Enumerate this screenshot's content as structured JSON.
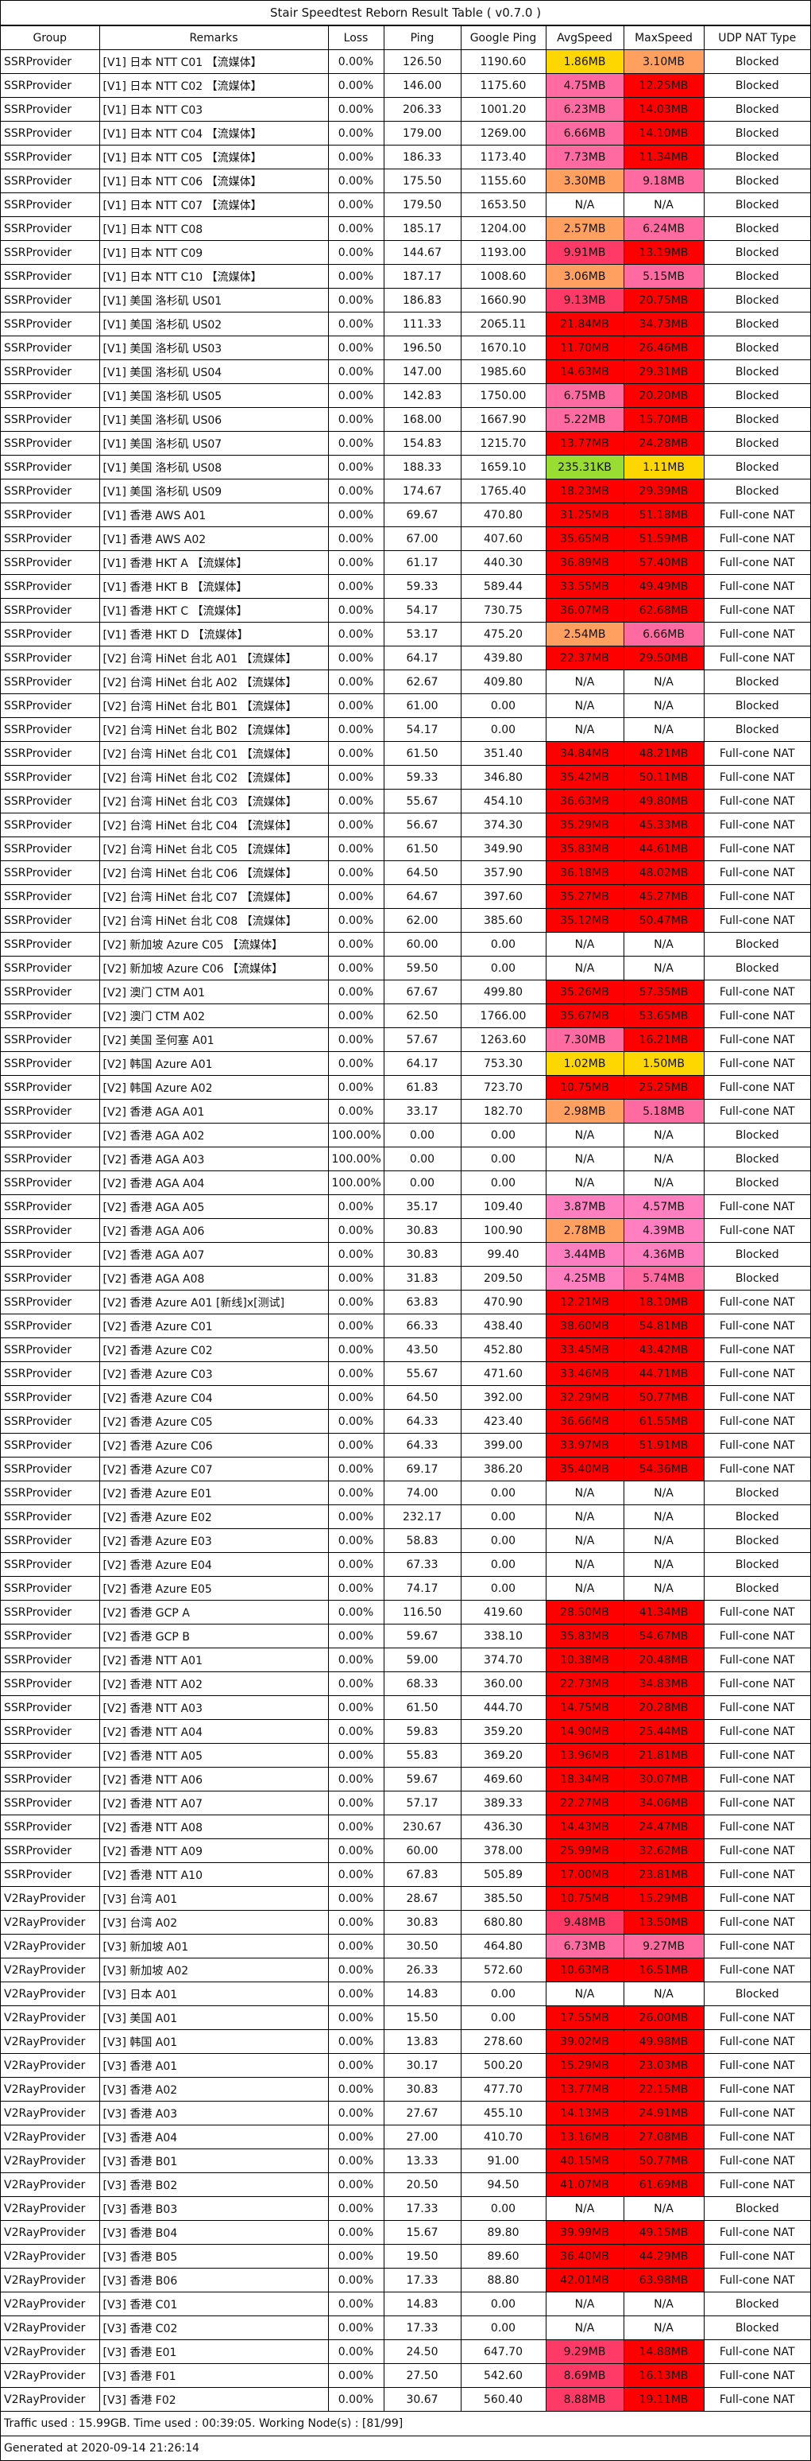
{
  "title": "Stair Speedtest Reborn Result Table ( v0.7.0 )",
  "headers": [
    "Group",
    "Remarks",
    "Loss",
    "Ping",
    "Google Ping",
    "AvgSpeed",
    "MaxSpeed",
    "UDP NAT Type"
  ],
  "colors": {
    "red": "#ff0000",
    "pink_bright": "#ff3a66",
    "pink": "#ff6aa0",
    "pink_light": "#ff7fc0",
    "orange": "#ffa060",
    "yellow": "#ffd700",
    "green": "#99dd33"
  },
  "rows": [
    [
      "SSRProvider",
      "[V1] 日本 NTT C01 【流媒体】",
      "0.00%",
      "126.50",
      "1190.60",
      "1.86MB",
      "3.10MB",
      "Blocked",
      "yellow",
      "orange"
    ],
    [
      "SSRProvider",
      "[V1] 日本 NTT C02 【流媒体】",
      "0.00%",
      "146.00",
      "1175.60",
      "4.75MB",
      "12.25MB",
      "Blocked",
      "pink",
      "red"
    ],
    [
      "SSRProvider",
      "[V1] 日本 NTT C03",
      "0.00%",
      "206.33",
      "1001.20",
      "6.23MB",
      "14.03MB",
      "Blocked",
      "pink",
      "red"
    ],
    [
      "SSRProvider",
      "[V1] 日本 NTT C04 【流媒体】",
      "0.00%",
      "179.00",
      "1269.00",
      "6.66MB",
      "14.10MB",
      "Blocked",
      "pink",
      "red"
    ],
    [
      "SSRProvider",
      "[V1] 日本 NTT C05 【流媒体】",
      "0.00%",
      "186.33",
      "1173.40",
      "7.73MB",
      "11.34MB",
      "Blocked",
      "pink",
      "red"
    ],
    [
      "SSRProvider",
      "[V1] 日本 NTT C06 【流媒体】",
      "0.00%",
      "175.50",
      "1155.60",
      "3.30MB",
      "9.18MB",
      "Blocked",
      "orange",
      "pink"
    ],
    [
      "SSRProvider",
      "[V1] 日本 NTT C07 【流媒体】",
      "0.00%",
      "179.50",
      "1653.50",
      "N/A",
      "N/A",
      "Blocked",
      "",
      ""
    ],
    [
      "SSRProvider",
      "[V1] 日本 NTT C08",
      "0.00%",
      "185.17",
      "1204.00",
      "2.57MB",
      "6.24MB",
      "Blocked",
      "orange",
      "pink"
    ],
    [
      "SSRProvider",
      "[V1] 日本 NTT C09",
      "0.00%",
      "144.67",
      "1193.00",
      "9.91MB",
      "13.19MB",
      "Blocked",
      "pink_bright",
      "red"
    ],
    [
      "SSRProvider",
      "[V1] 日本 NTT C10 【流媒体】",
      "0.00%",
      "187.17",
      "1008.60",
      "3.06MB",
      "5.15MB",
      "Blocked",
      "orange",
      "pink"
    ],
    [
      "SSRProvider",
      "[V1] 美国 洛杉矶 US01",
      "0.00%",
      "186.83",
      "1660.90",
      "9.13MB",
      "20.75MB",
      "Blocked",
      "pink_bright",
      "red"
    ],
    [
      "SSRProvider",
      "[V1] 美国 洛杉矶 US02",
      "0.00%",
      "111.33",
      "2065.11",
      "21.84MB",
      "34.73MB",
      "Blocked",
      "red",
      "red"
    ],
    [
      "SSRProvider",
      "[V1] 美国 洛杉矶 US03",
      "0.00%",
      "196.50",
      "1670.10",
      "11.70MB",
      "26.46MB",
      "Blocked",
      "red",
      "red"
    ],
    [
      "SSRProvider",
      "[V1] 美国 洛杉矶 US04",
      "0.00%",
      "147.00",
      "1985.60",
      "14.63MB",
      "29.31MB",
      "Blocked",
      "red",
      "red"
    ],
    [
      "SSRProvider",
      "[V1] 美国 洛杉矶 US05",
      "0.00%",
      "142.83",
      "1750.00",
      "6.75MB",
      "20.20MB",
      "Blocked",
      "pink",
      "red"
    ],
    [
      "SSRProvider",
      "[V1] 美国 洛杉矶 US06",
      "0.00%",
      "168.00",
      "1667.90",
      "5.22MB",
      "15.70MB",
      "Blocked",
      "pink",
      "red"
    ],
    [
      "SSRProvider",
      "[V1] 美国 洛杉矶 US07",
      "0.00%",
      "154.83",
      "1215.70",
      "13.77MB",
      "24.28MB",
      "Blocked",
      "red",
      "red"
    ],
    [
      "SSRProvider",
      "[V1] 美国 洛杉矶 US08",
      "0.00%",
      "188.33",
      "1659.10",
      "235.31KB",
      "1.11MB",
      "Blocked",
      "green",
      "yellow"
    ],
    [
      "SSRProvider",
      "[V1] 美国 洛杉矶 US09",
      "0.00%",
      "174.67",
      "1765.40",
      "18.23MB",
      "29.39MB",
      "Blocked",
      "red",
      "red"
    ],
    [
      "SSRProvider",
      "[V1] 香港 AWS A01",
      "0.00%",
      "69.67",
      "470.80",
      "31.25MB",
      "51.18MB",
      "Full-cone NAT",
      "red",
      "red"
    ],
    [
      "SSRProvider",
      "[V1] 香港 AWS A02",
      "0.00%",
      "67.00",
      "407.60",
      "35.65MB",
      "51.59MB",
      "Full-cone NAT",
      "red",
      "red"
    ],
    [
      "SSRProvider",
      "[V1] 香港 HKT A 【流媒体】",
      "0.00%",
      "61.17",
      "440.30",
      "36.89MB",
      "57.40MB",
      "Full-cone NAT",
      "red",
      "red"
    ],
    [
      "SSRProvider",
      "[V1] 香港 HKT B 【流媒体】",
      "0.00%",
      "59.33",
      "589.44",
      "33.55MB",
      "49.49MB",
      "Full-cone NAT",
      "red",
      "red"
    ],
    [
      "SSRProvider",
      "[V1] 香港 HKT C 【流媒体】",
      "0.00%",
      "54.17",
      "730.75",
      "36.07MB",
      "62.68MB",
      "Full-cone NAT",
      "red",
      "red"
    ],
    [
      "SSRProvider",
      "[V1] 香港 HKT D 【流媒体】",
      "0.00%",
      "53.17",
      "475.20",
      "2.54MB",
      "6.66MB",
      "Full-cone NAT",
      "orange",
      "pink"
    ],
    [
      "SSRProvider",
      "[V2] 台湾 HiNet 台北 A01 【流媒体】",
      "0.00%",
      "64.17",
      "439.80",
      "22.37MB",
      "29.50MB",
      "Full-cone NAT",
      "red",
      "red"
    ],
    [
      "SSRProvider",
      "[V2] 台湾 HiNet 台北 A02 【流媒体】",
      "0.00%",
      "62.67",
      "409.80",
      "N/A",
      "N/A",
      "Blocked",
      "",
      ""
    ],
    [
      "SSRProvider",
      "[V2] 台湾 HiNet 台北 B01 【流媒体】",
      "0.00%",
      "61.00",
      "0.00",
      "N/A",
      "N/A",
      "Blocked",
      "",
      ""
    ],
    [
      "SSRProvider",
      "[V2] 台湾 HiNet 台北 B02 【流媒体】",
      "0.00%",
      "54.17",
      "0.00",
      "N/A",
      "N/A",
      "Blocked",
      "",
      ""
    ],
    [
      "SSRProvider",
      "[V2] 台湾 HiNet 台北 C01 【流媒体】",
      "0.00%",
      "61.50",
      "351.40",
      "34.84MB",
      "48.21MB",
      "Full-cone NAT",
      "red",
      "red"
    ],
    [
      "SSRProvider",
      "[V2] 台湾 HiNet 台北 C02 【流媒体】",
      "0.00%",
      "59.33",
      "346.80",
      "35.42MB",
      "50.11MB",
      "Full-cone NAT",
      "red",
      "red"
    ],
    [
      "SSRProvider",
      "[V2] 台湾 HiNet 台北 C03 【流媒体】",
      "0.00%",
      "55.67",
      "454.10",
      "36.63MB",
      "49.80MB",
      "Full-cone NAT",
      "red",
      "red"
    ],
    [
      "SSRProvider",
      "[V2] 台湾 HiNet 台北 C04 【流媒体】",
      "0.00%",
      "56.67",
      "374.30",
      "35.29MB",
      "45.33MB",
      "Full-cone NAT",
      "red",
      "red"
    ],
    [
      "SSRProvider",
      "[V2] 台湾 HiNet 台北 C05 【流媒体】",
      "0.00%",
      "61.50",
      "349.90",
      "35.83MB",
      "44.61MB",
      "Full-cone NAT",
      "red",
      "red"
    ],
    [
      "SSRProvider",
      "[V2] 台湾 HiNet 台北 C06 【流媒体】",
      "0.00%",
      "64.50",
      "357.90",
      "36.18MB",
      "48.02MB",
      "Full-cone NAT",
      "red",
      "red"
    ],
    [
      "SSRProvider",
      "[V2] 台湾 HiNet 台北 C07 【流媒体】",
      "0.00%",
      "64.67",
      "397.60",
      "35.27MB",
      "45.27MB",
      "Full-cone NAT",
      "red",
      "red"
    ],
    [
      "SSRProvider",
      "[V2] 台湾 HiNet 台北 C08 【流媒体】",
      "0.00%",
      "62.00",
      "385.60",
      "35.12MB",
      "50.47MB",
      "Full-cone NAT",
      "red",
      "red"
    ],
    [
      "SSRProvider",
      "[V2] 新加坡 Azure C05 【流媒体】",
      "0.00%",
      "60.00",
      "0.00",
      "N/A",
      "N/A",
      "Blocked",
      "",
      ""
    ],
    [
      "SSRProvider",
      "[V2] 新加坡 Azure C06 【流媒体】",
      "0.00%",
      "59.50",
      "0.00",
      "N/A",
      "N/A",
      "Blocked",
      "",
      ""
    ],
    [
      "SSRProvider",
      "[V2] 澳门 CTM A01",
      "0.00%",
      "67.67",
      "499.80",
      "35.26MB",
      "57.35MB",
      "Full-cone NAT",
      "red",
      "red"
    ],
    [
      "SSRProvider",
      "[V2] 澳门 CTM A02",
      "0.00%",
      "62.50",
      "1766.00",
      "35.67MB",
      "53.65MB",
      "Full-cone NAT",
      "red",
      "red"
    ],
    [
      "SSRProvider",
      "[V2] 美国 圣何塞 A01",
      "0.00%",
      "57.67",
      "1263.60",
      "7.30MB",
      "16.21MB",
      "Full-cone NAT",
      "pink",
      "red"
    ],
    [
      "SSRProvider",
      "[V2] 韩国 Azure A01",
      "0.00%",
      "64.17",
      "753.30",
      "1.02MB",
      "1.50MB",
      "Full-cone NAT",
      "yellow",
      "yellow"
    ],
    [
      "SSRProvider",
      "[V2] 韩国 Azure A02",
      "0.00%",
      "61.83",
      "723.70",
      "10.75MB",
      "25.25MB",
      "Full-cone NAT",
      "red",
      "red"
    ],
    [
      "SSRProvider",
      "[V2] 香港 AGA A01",
      "0.00%",
      "33.17",
      "182.70",
      "2.98MB",
      "5.18MB",
      "Full-cone NAT",
      "orange",
      "pink"
    ],
    [
      "SSRProvider",
      "[V2] 香港 AGA A02",
      "100.00%",
      "0.00",
      "0.00",
      "N/A",
      "N/A",
      "Blocked",
      "",
      ""
    ],
    [
      "SSRProvider",
      "[V2] 香港 AGA A03",
      "100.00%",
      "0.00",
      "0.00",
      "N/A",
      "N/A",
      "Blocked",
      "",
      ""
    ],
    [
      "SSRProvider",
      "[V2] 香港 AGA A04",
      "100.00%",
      "0.00",
      "0.00",
      "N/A",
      "N/A",
      "Blocked",
      "",
      ""
    ],
    [
      "SSRProvider",
      "[V2] 香港 AGA A05",
      "0.00%",
      "35.17",
      "109.40",
      "3.87MB",
      "4.57MB",
      "Full-cone NAT",
      "pink_light",
      "pink_light"
    ],
    [
      "SSRProvider",
      "[V2] 香港 AGA A06",
      "0.00%",
      "30.83",
      "100.90",
      "2.78MB",
      "4.39MB",
      "Full-cone NAT",
      "orange",
      "pink_light"
    ],
    [
      "SSRProvider",
      "[V2] 香港 AGA A07",
      "0.00%",
      "30.83",
      "99.40",
      "3.44MB",
      "4.36MB",
      "Blocked",
      "pink_light",
      "pink_light"
    ],
    [
      "SSRProvider",
      "[V2] 香港 AGA A08",
      "0.00%",
      "31.83",
      "209.50",
      "4.25MB",
      "5.74MB",
      "Blocked",
      "pink_light",
      "pink"
    ],
    [
      "SSRProvider",
      "[V2] 香港 Azure A01 [新线]x[测试]",
      "0.00%",
      "63.83",
      "470.90",
      "12.21MB",
      "18.10MB",
      "Full-cone NAT",
      "red",
      "red"
    ],
    [
      "SSRProvider",
      "[V2] 香港 Azure C01",
      "0.00%",
      "66.33",
      "438.40",
      "38.60MB",
      "54.81MB",
      "Full-cone NAT",
      "red",
      "red"
    ],
    [
      "SSRProvider",
      "[V2] 香港 Azure C02",
      "0.00%",
      "43.50",
      "452.80",
      "33.45MB",
      "43.42MB",
      "Full-cone NAT",
      "red",
      "red"
    ],
    [
      "SSRProvider",
      "[V2] 香港 Azure C03",
      "0.00%",
      "55.67",
      "471.60",
      "33.46MB",
      "44.71MB",
      "Full-cone NAT",
      "red",
      "red"
    ],
    [
      "SSRProvider",
      "[V2] 香港 Azure C04",
      "0.00%",
      "64.50",
      "392.00",
      "32.29MB",
      "50.77MB",
      "Full-cone NAT",
      "red",
      "red"
    ],
    [
      "SSRProvider",
      "[V2] 香港 Azure C05",
      "0.00%",
      "64.33",
      "423.40",
      "36.66MB",
      "61.55MB",
      "Full-cone NAT",
      "red",
      "red"
    ],
    [
      "SSRProvider",
      "[V2] 香港 Azure C06",
      "0.00%",
      "64.33",
      "399.00",
      "33.97MB",
      "51.91MB",
      "Full-cone NAT",
      "red",
      "red"
    ],
    [
      "SSRProvider",
      "[V2] 香港 Azure C07",
      "0.00%",
      "69.17",
      "386.20",
      "35.40MB",
      "54.36MB",
      "Full-cone NAT",
      "red",
      "red"
    ],
    [
      "SSRProvider",
      "[V2] 香港 Azure E01",
      "0.00%",
      "74.00",
      "0.00",
      "N/A",
      "N/A",
      "Blocked",
      "",
      ""
    ],
    [
      "SSRProvider",
      "[V2] 香港 Azure E02",
      "0.00%",
      "232.17",
      "0.00",
      "N/A",
      "N/A",
      "Blocked",
      "",
      ""
    ],
    [
      "SSRProvider",
      "[V2] 香港 Azure E03",
      "0.00%",
      "58.83",
      "0.00",
      "N/A",
      "N/A",
      "Blocked",
      "",
      ""
    ],
    [
      "SSRProvider",
      "[V2] 香港 Azure E04",
      "0.00%",
      "67.33",
      "0.00",
      "N/A",
      "N/A",
      "Blocked",
      "",
      ""
    ],
    [
      "SSRProvider",
      "[V2] 香港 Azure E05",
      "0.00%",
      "74.17",
      "0.00",
      "N/A",
      "N/A",
      "Blocked",
      "",
      ""
    ],
    [
      "SSRProvider",
      "[V2] 香港 GCP A",
      "0.00%",
      "116.50",
      "419.60",
      "28.50MB",
      "41.34MB",
      "Full-cone NAT",
      "red",
      "red"
    ],
    [
      "SSRProvider",
      "[V2] 香港 GCP B",
      "0.00%",
      "59.67",
      "338.10",
      "35.83MB",
      "54.67MB",
      "Full-cone NAT",
      "red",
      "red"
    ],
    [
      "SSRProvider",
      "[V2] 香港 NTT A01",
      "0.00%",
      "59.00",
      "374.70",
      "10.38MB",
      "20.48MB",
      "Full-cone NAT",
      "red",
      "red"
    ],
    [
      "SSRProvider",
      "[V2] 香港 NTT A02",
      "0.00%",
      "68.33",
      "360.00",
      "22.73MB",
      "34.83MB",
      "Full-cone NAT",
      "red",
      "red"
    ],
    [
      "SSRProvider",
      "[V2] 香港 NTT A03",
      "0.00%",
      "61.50",
      "444.70",
      "14.75MB",
      "20.28MB",
      "Full-cone NAT",
      "red",
      "red"
    ],
    [
      "SSRProvider",
      "[V2] 香港 NTT A04",
      "0.00%",
      "59.83",
      "359.20",
      "14.90MB",
      "25.44MB",
      "Full-cone NAT",
      "red",
      "red"
    ],
    [
      "SSRProvider",
      "[V2] 香港 NTT A05",
      "0.00%",
      "55.83",
      "369.20",
      "13.96MB",
      "21.81MB",
      "Full-cone NAT",
      "red",
      "red"
    ],
    [
      "SSRProvider",
      "[V2] 香港 NTT A06",
      "0.00%",
      "59.67",
      "469.60",
      "18.34MB",
      "30.07MB",
      "Full-cone NAT",
      "red",
      "red"
    ],
    [
      "SSRProvider",
      "[V2] 香港 NTT A07",
      "0.00%",
      "57.17",
      "389.33",
      "22.27MB",
      "34.06MB",
      "Full-cone NAT",
      "red",
      "red"
    ],
    [
      "SSRProvider",
      "[V2] 香港 NTT A08",
      "0.00%",
      "230.67",
      "436.30",
      "14.43MB",
      "24.47MB",
      "Full-cone NAT",
      "red",
      "red"
    ],
    [
      "SSRProvider",
      "[V2] 香港 NTT A09",
      "0.00%",
      "60.00",
      "378.00",
      "25.99MB",
      "32.62MB",
      "Full-cone NAT",
      "red",
      "red"
    ],
    [
      "SSRProvider",
      "[V2] 香港 NTT A10",
      "0.00%",
      "67.83",
      "505.89",
      "17.00MB",
      "23.81MB",
      "Full-cone NAT",
      "red",
      "red"
    ],
    [
      "V2RayProvider",
      "[V3] 台湾 A01",
      "0.00%",
      "28.67",
      "385.50",
      "10.75MB",
      "15.29MB",
      "Full-cone NAT",
      "red",
      "red"
    ],
    [
      "V2RayProvider",
      "[V3] 台湾 A02",
      "0.00%",
      "30.83",
      "680.80",
      "9.48MB",
      "13.50MB",
      "Full-cone NAT",
      "pink_bright",
      "red"
    ],
    [
      "V2RayProvider",
      "[V3] 新加坡 A01",
      "0.00%",
      "30.50",
      "464.80",
      "6.73MB",
      "9.27MB",
      "Full-cone NAT",
      "pink",
      "pink"
    ],
    [
      "V2RayProvider",
      "[V3] 新加坡 A02",
      "0.00%",
      "26.33",
      "572.60",
      "10.63MB",
      "16.51MB",
      "Full-cone NAT",
      "red",
      "red"
    ],
    [
      "V2RayProvider",
      "[V3] 日本 A01",
      "0.00%",
      "14.83",
      "0.00",
      "N/A",
      "N/A",
      "Blocked",
      "",
      ""
    ],
    [
      "V2RayProvider",
      "[V3] 美国 A01",
      "0.00%",
      "15.50",
      "0.00",
      "17.55MB",
      "26.00MB",
      "Full-cone NAT",
      "red",
      "red"
    ],
    [
      "V2RayProvider",
      "[V3] 韩国 A01",
      "0.00%",
      "13.83",
      "278.60",
      "39.02MB",
      "49.98MB",
      "Full-cone NAT",
      "red",
      "red"
    ],
    [
      "V2RayProvider",
      "[V3] 香港 A01",
      "0.00%",
      "30.17",
      "500.20",
      "15.29MB",
      "23.03MB",
      "Full-cone NAT",
      "red",
      "red"
    ],
    [
      "V2RayProvider",
      "[V3] 香港 A02",
      "0.00%",
      "30.83",
      "477.70",
      "13.77MB",
      "22.15MB",
      "Full-cone NAT",
      "red",
      "red"
    ],
    [
      "V2RayProvider",
      "[V3] 香港 A03",
      "0.00%",
      "27.67",
      "455.10",
      "14.13MB",
      "24.91MB",
      "Full-cone NAT",
      "red",
      "red"
    ],
    [
      "V2RayProvider",
      "[V3] 香港 A04",
      "0.00%",
      "27.00",
      "410.70",
      "13.16MB",
      "27.08MB",
      "Full-cone NAT",
      "red",
      "red"
    ],
    [
      "V2RayProvider",
      "[V3] 香港 B01",
      "0.00%",
      "13.33",
      "91.00",
      "40.15MB",
      "50.77MB",
      "Full-cone NAT",
      "red",
      "red"
    ],
    [
      "V2RayProvider",
      "[V3] 香港 B02",
      "0.00%",
      "20.50",
      "94.50",
      "41.07MB",
      "61.69MB",
      "Full-cone NAT",
      "red",
      "red"
    ],
    [
      "V2RayProvider",
      "[V3] 香港 B03",
      "0.00%",
      "17.33",
      "0.00",
      "N/A",
      "N/A",
      "Blocked",
      "",
      ""
    ],
    [
      "V2RayProvider",
      "[V3] 香港 B04",
      "0.00%",
      "15.67",
      "89.80",
      "39.99MB",
      "49.15MB",
      "Full-cone NAT",
      "red",
      "red"
    ],
    [
      "V2RayProvider",
      "[V3] 香港 B05",
      "0.00%",
      "19.50",
      "89.60",
      "36.40MB",
      "44.29MB",
      "Full-cone NAT",
      "red",
      "red"
    ],
    [
      "V2RayProvider",
      "[V3] 香港 B06",
      "0.00%",
      "17.33",
      "88.80",
      "42.01MB",
      "63.98MB",
      "Full-cone NAT",
      "red",
      "red"
    ],
    [
      "V2RayProvider",
      "[V3] 香港 C01",
      "0.00%",
      "14.83",
      "0.00",
      "N/A",
      "N/A",
      "Blocked",
      "",
      ""
    ],
    [
      "V2RayProvider",
      "[V3] 香港 C02",
      "0.00%",
      "17.33",
      "0.00",
      "N/A",
      "N/A",
      "Blocked",
      "",
      ""
    ],
    [
      "V2RayProvider",
      "[V3] 香港 E01",
      "0.00%",
      "24.50",
      "647.70",
      "9.29MB",
      "14.88MB",
      "Full-cone NAT",
      "pink_bright",
      "red"
    ],
    [
      "V2RayProvider",
      "[V3] 香港 F01",
      "0.00%",
      "27.50",
      "542.60",
      "8.69MB",
      "16.13MB",
      "Full-cone NAT",
      "pink_bright",
      "red"
    ],
    [
      "V2RayProvider",
      "[V3] 香港 F02",
      "0.00%",
      "30.67",
      "560.40",
      "8.88MB",
      "19.11MB",
      "Full-cone NAT",
      "pink_bright",
      "red"
    ]
  ],
  "footer": {
    "traffic": "Traffic used : 15.99GB. Time used : 00:39:05. Working Node(s) : [81/99]",
    "generated": "Generated at 2020-09-14 21:26:14"
  }
}
